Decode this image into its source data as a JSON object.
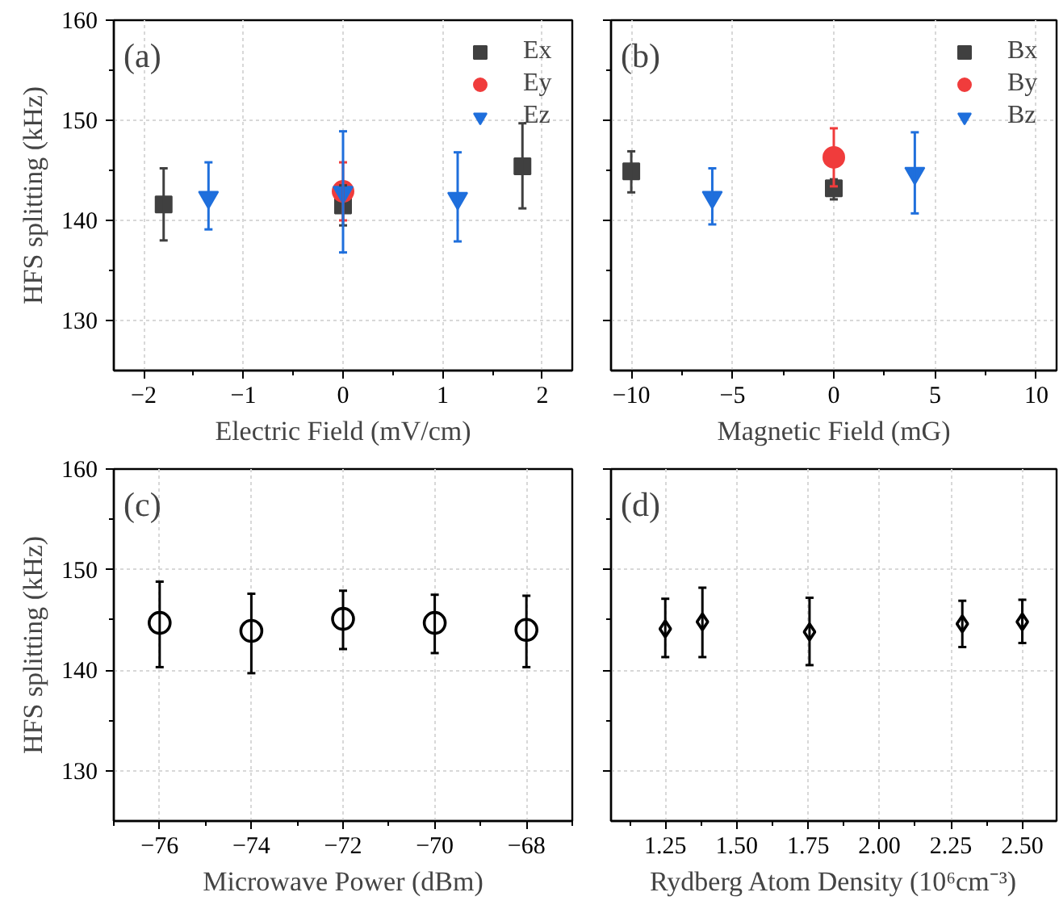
{
  "chart_data": [
    {
      "type": "scatter",
      "xlabel": "Electric Field (mV/cm)",
      "ylabel": "HFS splitting (kHz)",
      "annotations": [
        "(a)"
      ],
      "xlim": [
        -2.3,
        2.3
      ],
      "ylim": [
        125,
        160
      ],
      "xticks": [
        -2,
        {
          "value": -1.5,
          "label": null
        },
        -1,
        {
          "value": -0.5,
          "label": null
        },
        0,
        {
          "value": 0.5,
          "label": null
        },
        1,
        {
          "value": 1.5,
          "label": null
        },
        2
      ],
      "yticks": [
        130,
        {
          "value": 135,
          "label": null
        },
        140,
        {
          "value": 145,
          "label": null
        },
        150,
        {
          "value": 155,
          "label": null
        },
        160
      ],
      "grid": true,
      "legend": "top right",
      "series": [
        {
          "name": "Ex",
          "color": "#404040",
          "marker": "square",
          "x": [
            -1.8,
            0,
            1.8
          ],
          "values": [
            141.6,
            141.5,
            145.4
          ],
          "errors": [
            [
              138.0,
              145.2
            ],
            [
              139.5,
              143.5
            ],
            [
              141.2,
              149.7
            ]
          ]
        },
        {
          "name": "Ey",
          "color": "#f03c3c",
          "marker": "circle",
          "x": [
            0
          ],
          "values": [
            142.9
          ],
          "errors": [
            [
              140.0,
              145.8
            ]
          ]
        },
        {
          "name": "Ez",
          "color": "#1f6fdc",
          "marker": "triangle",
          "x": [
            -1.35,
            0,
            1.15
          ],
          "values": [
            142.3,
            142.8,
            142.2
          ],
          "errors": [
            [
              139.1,
              145.8
            ],
            [
              136.8,
              148.9
            ],
            [
              137.9,
              146.8
            ]
          ]
        }
      ]
    },
    {
      "type": "scatter",
      "xlabel": "Magnetic Field (mG)",
      "annotations": [
        "(b)"
      ],
      "xlim": [
        -11,
        11
      ],
      "ylim": [
        125,
        160
      ],
      "tick_labels": "x",
      "xticks": [
        -10,
        {
          "value": -7.5,
          "label": null
        },
        -5,
        {
          "value": -2.5,
          "label": null
        },
        0,
        {
          "value": 2.5,
          "label": null
        },
        5,
        {
          "value": 7.5,
          "label": null
        },
        10
      ],
      "yticks": [
        130,
        {
          "value": 135,
          "label": null
        },
        140,
        {
          "value": 145,
          "label": null
        },
        150,
        {
          "value": 155,
          "label": null
        },
        160
      ],
      "grid": true,
      "legend": "top right",
      "series": [
        {
          "name": "Bx",
          "color": "#404040",
          "marker": "square",
          "x": [
            -10,
            0
          ],
          "values": [
            144.9,
            143.2
          ],
          "errors": [
            [
              142.8,
              146.9
            ],
            [
              142.1,
              144.1
            ]
          ]
        },
        {
          "name": "By",
          "color": "#f03c3c",
          "marker": "circle",
          "x": [
            0
          ],
          "values": [
            146.3
          ],
          "errors": [
            [
              143.4,
              149.2
            ]
          ]
        },
        {
          "name": "Bz",
          "color": "#1f6fdc",
          "marker": "triangle",
          "x": [
            -6,
            4
          ],
          "values": [
            142.3,
            144.7
          ],
          "errors": [
            [
              139.6,
              145.2
            ],
            [
              140.7,
              148.8
            ]
          ]
        }
      ]
    },
    {
      "type": "scatter",
      "xlabel": "Microwave Power (dBm)",
      "ylabel": "HFS splitting (kHz)",
      "annotations": [
        "(c)"
      ],
      "xlim": [
        -77,
        -67
      ],
      "ylim": [
        125,
        160
      ],
      "xticks": [
        {
          "value": -77,
          "label": null
        },
        -76,
        {
          "value": -75,
          "label": null
        },
        -74,
        {
          "value": -73,
          "label": null
        },
        -72,
        {
          "value": -71,
          "label": null
        },
        -70,
        {
          "value": -69,
          "label": null
        },
        -68,
        {
          "value": -67,
          "label": null
        }
      ],
      "yticks": [
        130,
        {
          "value": 135,
          "label": null
        },
        140,
        {
          "value": 145,
          "label": null
        },
        150,
        {
          "value": 155,
          "label": null
        },
        160
      ],
      "grid": true,
      "series": [
        {
          "color": "#000000",
          "marker": "circle",
          "x": [
            -76,
            -74,
            -72,
            -70,
            -68
          ],
          "values": [
            144.7,
            143.9,
            145.1,
            144.7,
            144.0
          ],
          "errors": [
            [
              140.3,
              148.8
            ],
            [
              139.7,
              147.6
            ],
            [
              142.1,
              147.9
            ],
            [
              141.7,
              147.5
            ],
            [
              140.3,
              147.4
            ]
          ]
        }
      ]
    },
    {
      "type": "scatter",
      "xlabel": "Rydberg Atom Density (10⁶cm⁻³)",
      "annotations": [
        "(d)"
      ],
      "xlim": [
        1.06,
        2.62
      ],
      "ylim": [
        125,
        160
      ],
      "tick_labels": "x",
      "xticks": [
        {
          "value": 1.125,
          "label": null
        },
        1.25,
        {
          "value": 1.375,
          "label": null
        },
        {
          "value": 1.5,
          "label": "1.50"
        },
        {
          "value": 1.625,
          "label": null
        },
        1.75,
        {
          "value": 1.875,
          "label": null
        },
        {
          "value": 2.0,
          "label": "2.00"
        },
        {
          "value": 2.125,
          "label": null
        },
        2.25,
        {
          "value": 2.375,
          "label": null
        },
        {
          "value": 2.5,
          "label": "2.50"
        }
      ],
      "yticks": [
        130,
        {
          "value": 135,
          "label": null
        },
        140,
        {
          "value": 145,
          "label": null
        },
        150,
        {
          "value": 155,
          "label": null
        },
        160
      ],
      "grid": true,
      "series": [
        {
          "color": "#000000",
          "marker": "diamond",
          "x": [
            1.25,
            1.38,
            1.755,
            2.29,
            2.5
          ],
          "values": [
            144.1,
            144.8,
            143.8,
            144.6,
            144.8
          ],
          "errors": [
            [
              141.3,
              147.1
            ],
            [
              141.3,
              148.2
            ],
            [
              140.5,
              147.2
            ],
            [
              142.3,
              146.9
            ],
            [
              142.7,
              147.0
            ]
          ]
        }
      ]
    }
  ]
}
